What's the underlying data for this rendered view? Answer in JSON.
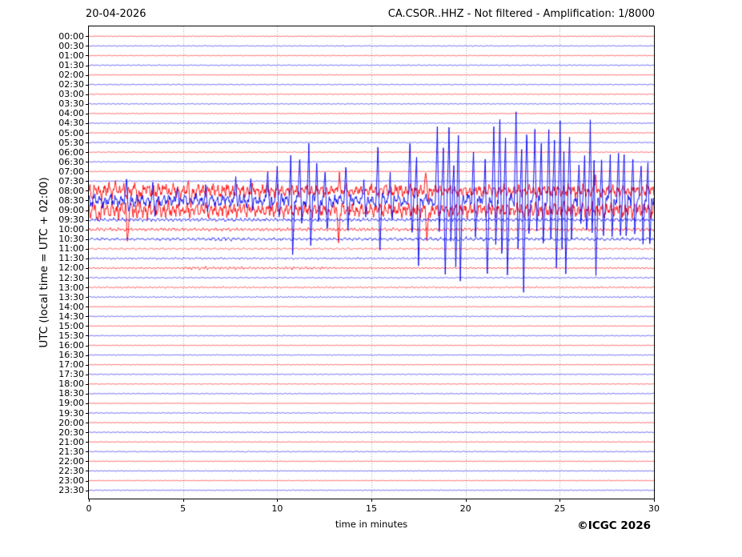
{
  "chart_data": {
    "type": "line",
    "subtype": "helicorder-seismogram",
    "title_left": "20-04-2026",
    "title_right": "CA.CSOR..HHZ - Not filtered - Amplification: 1/8000",
    "xlabel": "time in minutes",
    "ylabel": "UTC (local time = UTC + 02:00)",
    "copyright": "©ICGC 2026",
    "xlim": [
      0,
      30
    ],
    "x_ticks": [
      0,
      5,
      10,
      15,
      20,
      25,
      30
    ],
    "grid_minutes": [
      5,
      10,
      15,
      20,
      25
    ],
    "legend": "none",
    "grid": "vertical-dotted",
    "colors": {
      "hour_trace": "#ff0000",
      "half_hour_trace": "#0000ee",
      "grid": "#808080",
      "axis": "#000000",
      "background": "#ffffff"
    },
    "seed": 42,
    "amplitude_note": "amp and spike heights in screen px; spikes are [minute, up_px, down_px]",
    "rows": [
      {
        "label": "00:00",
        "color": "#ff0000",
        "amp": 0.45
      },
      {
        "label": "00:30",
        "color": "#0000ee",
        "amp": 0.55
      },
      {
        "label": "01:00",
        "color": "#ff0000",
        "amp": 0.45
      },
      {
        "label": "01:30",
        "color": "#0000ee",
        "amp": 0.6
      },
      {
        "label": "02:00",
        "color": "#ff0000",
        "amp": 0.45
      },
      {
        "label": "02:30",
        "color": "#0000ee",
        "amp": 0.55
      },
      {
        "label": "03:00",
        "color": "#ff0000",
        "amp": 0.45
      },
      {
        "label": "03:30",
        "color": "#0000ee",
        "amp": 0.55
      },
      {
        "label": "04:00",
        "color": "#ff0000",
        "amp": 0.45
      },
      {
        "label": "04:30",
        "color": "#0000ee",
        "amp": 0.6
      },
      {
        "label": "05:00",
        "color": "#ff0000",
        "amp": 0.45
      },
      {
        "label": "05:30",
        "color": "#0000ee",
        "amp": 0.55
      },
      {
        "label": "06:00",
        "color": "#ff0000",
        "amp": 0.5
      },
      {
        "label": "06:30",
        "color": "#0000ee",
        "amp": 0.55
      },
      {
        "label": "07:00",
        "color": "#ff0000",
        "amp": 0.5
      },
      {
        "label": "07:30",
        "color": "#0000ee",
        "amp": 0.65
      },
      {
        "label": "08:00",
        "color": "#ff0000",
        "envelope": [
          [
            0,
            7
          ],
          [
            1,
            10
          ],
          [
            3,
            8.5
          ],
          [
            6,
            9
          ],
          [
            9,
            7.5
          ],
          [
            12,
            7
          ],
          [
            16,
            7.5
          ],
          [
            20,
            6.5
          ],
          [
            24,
            7
          ],
          [
            27,
            7.5
          ],
          [
            30,
            7.5
          ]
        ],
        "spikes": [
          [
            0.08,
            2,
            9
          ],
          [
            1.45,
            16,
            8
          ],
          [
            2.5,
            8,
            18
          ],
          [
            4.1,
            13,
            7
          ],
          [
            5.3,
            7,
            15
          ],
          [
            13.3,
            25,
            8
          ],
          [
            17.9,
            21,
            8
          ],
          [
            26.9,
            18,
            6
          ]
        ]
      },
      {
        "label": "08:30",
        "color": "#0000ee",
        "envelope": [
          [
            0,
            8
          ],
          [
            3,
            7
          ],
          [
            8,
            7
          ],
          [
            15,
            7
          ],
          [
            22,
            7.5
          ],
          [
            30,
            7.5
          ]
        ],
        "spikes": [
          [
            2.0,
            22,
            12
          ],
          [
            3.4,
            16,
            20
          ],
          [
            4.7,
            23,
            10
          ],
          [
            6.2,
            19,
            14
          ],
          [
            7.8,
            32,
            12
          ],
          [
            8.6,
            28,
            10
          ],
          [
            9.5,
            36,
            14
          ],
          [
            10.0,
            42,
            18
          ],
          [
            10.72,
            55,
            72
          ],
          [
            11.2,
            58,
            30
          ],
          [
            11.68,
            66,
            55
          ],
          [
            12.1,
            50,
            28
          ],
          [
            12.55,
            34,
            40
          ],
          [
            13.65,
            44,
            34
          ],
          [
            14.6,
            30,
            22
          ],
          [
            15.35,
            70,
            66
          ],
          [
            16.0,
            36,
            26
          ],
          [
            17.05,
            74,
            46
          ],
          [
            17.4,
            58,
            80
          ],
          [
            18.5,
            88,
            38
          ],
          [
            18.82,
            66,
            90
          ],
          [
            19.12,
            94,
            48
          ],
          [
            19.38,
            42,
            82
          ],
          [
            19.62,
            84,
            94
          ],
          [
            20.42,
            58,
            42
          ],
          [
            21.05,
            50,
            100
          ],
          [
            21.5,
            92,
            58
          ],
          [
            21.82,
            98,
            66
          ],
          [
            22.12,
            78,
            94
          ],
          [
            22.68,
            108,
            56
          ],
          [
            22.98,
            62,
            112
          ],
          [
            23.25,
            84,
            48
          ],
          [
            23.68,
            90,
            40
          ],
          [
            24.02,
            74,
            58
          ],
          [
            24.42,
            86,
            48
          ],
          [
            24.72,
            68,
            84
          ],
          [
            25.02,
            98,
            54
          ],
          [
            25.22,
            58,
            90
          ],
          [
            25.52,
            76,
            44
          ],
          [
            26.02,
            46,
            34
          ],
          [
            26.32,
            52,
            42
          ],
          [
            26.62,
            96,
            44
          ],
          [
            26.82,
            54,
            100
          ],
          [
            27.22,
            46,
            42
          ],
          [
            27.68,
            56,
            50
          ],
          [
            28.12,
            58,
            36
          ],
          [
            28.42,
            50,
            46
          ],
          [
            28.88,
            56,
            42
          ],
          [
            29.32,
            46,
            52
          ],
          [
            29.68,
            52,
            60
          ]
        ]
      },
      {
        "label": "09:00",
        "color": "#ff0000",
        "envelope": [
          [
            0,
            9
          ],
          [
            2,
            11
          ],
          [
            5,
            9
          ],
          [
            10,
            8
          ],
          [
            15,
            8
          ],
          [
            20,
            8
          ],
          [
            25,
            8.5
          ],
          [
            30,
            9
          ]
        ],
        "spikes": [
          [
            0.35,
            5,
            18
          ],
          [
            1.95,
            6,
            36
          ],
          [
            13.15,
            8,
            44
          ],
          [
            17.85,
            8,
            46
          ]
        ]
      },
      {
        "label": "09:30",
        "color": "#0000ee",
        "amp": 2.0
      },
      {
        "label": "10:00",
        "color": "#ff0000",
        "amp": 1.9
      },
      {
        "label": "10:30",
        "color": "#0000ee",
        "envelope": [
          [
            0,
            1.6
          ],
          [
            6,
            1.6
          ],
          [
            7,
            2.2
          ],
          [
            9,
            1.7
          ],
          [
            18,
            1.8
          ],
          [
            20,
            2.4
          ],
          [
            22,
            1.8
          ],
          [
            30,
            1.9
          ]
        ]
      },
      {
        "label": "11:00",
        "color": "#ff0000",
        "amp": 1.0
      },
      {
        "label": "11:30",
        "color": "#0000ee",
        "amp": 1.1
      },
      {
        "label": "12:00",
        "color": "#ff0000",
        "envelope": [
          [
            0,
            0.8
          ],
          [
            4.8,
            0.9
          ],
          [
            5.4,
            1.8
          ],
          [
            8.5,
            1.5
          ],
          [
            10.2,
            1.0
          ],
          [
            10.8,
            1.7
          ],
          [
            12.5,
            1.2
          ],
          [
            13.2,
            0.8
          ],
          [
            30,
            0.8
          ]
        ]
      },
      {
        "label": "12:30",
        "color": "#0000ee",
        "amp": 0.75
      },
      {
        "label": "13:00",
        "color": "#ff0000",
        "amp": 0.95
      },
      {
        "label": "13:30",
        "color": "#0000ee",
        "amp": 0.8
      },
      {
        "label": "14:00",
        "color": "#ff0000",
        "amp": 0.4
      },
      {
        "label": "14:30",
        "color": "#0000ee",
        "amp": 0.55
      },
      {
        "label": "15:00",
        "color": "#ff0000",
        "amp": 0.4
      },
      {
        "label": "15:30",
        "color": "#0000ee",
        "amp": 0.5
      },
      {
        "label": "16:00",
        "color": "#ff0000",
        "amp": 0.4
      },
      {
        "label": "16:30",
        "color": "#0000ee",
        "amp": 0.5
      },
      {
        "label": "17:00",
        "color": "#ff0000",
        "amp": 0.4
      },
      {
        "label": "17:30",
        "color": "#0000ee",
        "amp": 0.5
      },
      {
        "label": "18:00",
        "color": "#ff0000",
        "amp": 0.4
      },
      {
        "label": "18:30",
        "color": "#0000ee",
        "amp": 0.55
      },
      {
        "label": "19:00",
        "color": "#ff0000",
        "amp": 0.4
      },
      {
        "label": "19:30",
        "color": "#0000ee",
        "amp": 0.5
      },
      {
        "label": "20:00",
        "color": "#ff0000",
        "amp": 0.4
      },
      {
        "label": "20:30",
        "color": "#0000ee",
        "amp": 0.5
      },
      {
        "label": "21:00",
        "color": "#ff0000",
        "amp": 0.4
      },
      {
        "label": "21:30",
        "color": "#0000ee",
        "amp": 0.55
      },
      {
        "label": "22:00",
        "color": "#ff0000",
        "amp": 0.45
      },
      {
        "label": "22:30",
        "color": "#0000ee",
        "amp": 0.5
      },
      {
        "label": "23:00",
        "color": "#ff0000",
        "amp": 0.45
      },
      {
        "label": "23:30",
        "color": "#0000ee",
        "amp": 0.5
      }
    ]
  }
}
